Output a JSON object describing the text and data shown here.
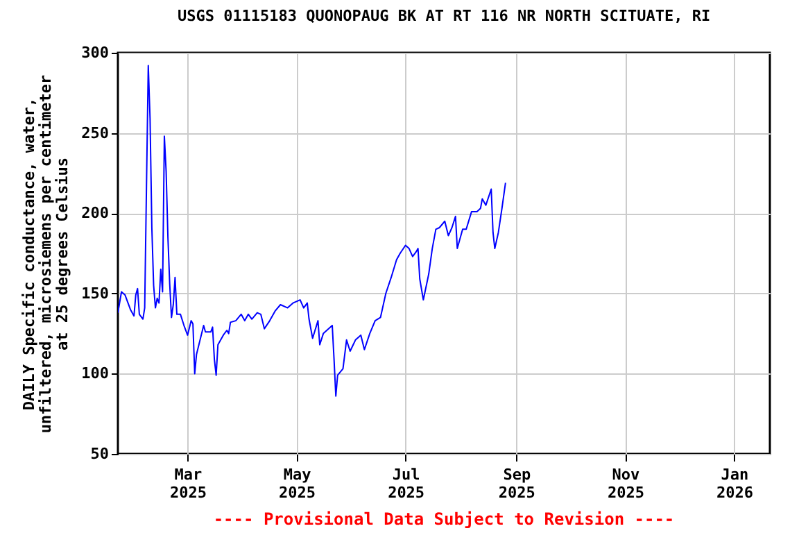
{
  "chart_data": {
    "type": "line",
    "title": "USGS 01115183 QUONOPAUG BK AT RT 116 NR NORTH SCITUATE, RI",
    "ylabel": "DAILY Specific conductance, water, unfiltered, microsiemens per centimeter at 25 degrees Celsius",
    "annotations": [
      "---- Provisional Data Subject to Revision ----"
    ],
    "xlim": [
      "2025-01-21",
      "2026-01-21"
    ],
    "ylim": [
      50,
      300
    ],
    "xticks": [
      {
        "value": "2025-03-01",
        "label": "Mar 2025"
      },
      {
        "value": "2025-05-01",
        "label": "May 2025"
      },
      {
        "value": "2025-07-01",
        "label": "Jul 2025"
      },
      {
        "value": "2025-09-01",
        "label": "Sep 2025"
      },
      {
        "value": "2025-11-01",
        "label": "Nov 2025"
      },
      {
        "value": "2026-01-01",
        "label": "Jan 2026"
      }
    ],
    "yticks": [
      50,
      100,
      150,
      200,
      250,
      300
    ],
    "grid": true,
    "x": [
      "2025-01-21",
      "2025-01-23",
      "2025-01-25",
      "2025-01-28",
      "2025-01-30",
      "2025-01-31",
      "2025-02-01",
      "2025-02-02",
      "2025-02-04",
      "2025-02-05",
      "2025-02-06",
      "2025-02-07",
      "2025-02-08",
      "2025-02-09",
      "2025-02-10",
      "2025-02-11",
      "2025-02-12",
      "2025-02-13",
      "2025-02-14",
      "2025-02-15",
      "2025-02-16",
      "2025-02-17",
      "2025-02-18",
      "2025-02-19",
      "2025-02-20",
      "2025-02-21",
      "2025-02-22",
      "2025-02-23",
      "2025-02-25",
      "2025-02-27",
      "2025-03-01",
      "2025-03-03",
      "2025-03-04",
      "2025-03-05",
      "2025-03-06",
      "2025-03-08",
      "2025-03-10",
      "2025-03-11",
      "2025-03-14",
      "2025-03-15",
      "2025-03-16",
      "2025-03-17",
      "2025-03-18",
      "2025-03-21",
      "2025-03-23",
      "2025-03-24",
      "2025-03-25",
      "2025-03-28",
      "2025-03-31",
      "2025-04-02",
      "2025-04-04",
      "2025-04-06",
      "2025-04-09",
      "2025-04-11",
      "2025-04-13",
      "2025-04-16",
      "2025-04-19",
      "2025-04-22",
      "2025-04-26",
      "2025-04-29",
      "2025-05-03",
      "2025-05-05",
      "2025-05-07",
      "2025-05-08",
      "2025-05-10",
      "2025-05-13",
      "2025-05-14",
      "2025-05-16",
      "2025-05-20",
      "2025-05-21",
      "2025-05-22",
      "2025-05-23",
      "2025-05-24",
      "2025-05-27",
      "2025-05-29",
      "2025-05-31",
      "2025-06-03",
      "2025-06-06",
      "2025-06-08",
      "2025-06-11",
      "2025-06-14",
      "2025-06-17",
      "2025-06-20",
      "2025-06-23",
      "2025-06-26",
      "2025-06-28",
      "2025-07-01",
      "2025-07-03",
      "2025-07-05",
      "2025-07-07",
      "2025-07-08",
      "2025-07-09",
      "2025-07-11",
      "2025-07-14",
      "2025-07-16",
      "2025-07-18",
      "2025-07-20",
      "2025-07-23",
      "2025-07-25",
      "2025-07-27",
      "2025-07-29",
      "2025-07-30",
      "2025-08-02",
      "2025-08-04",
      "2025-08-07",
      "2025-08-10",
      "2025-08-12",
      "2025-08-13",
      "2025-08-15",
      "2025-08-18",
      "2025-08-19",
      "2025-08-20",
      "2025-08-22",
      "2025-08-24",
      "2025-08-26"
    ],
    "series": [
      {
        "color": "#0000ff",
        "values": [
          138,
          151,
          149,
          140,
          136,
          149,
          153,
          137,
          134,
          141,
          217,
          292,
          259,
          191,
          155,
          141,
          147,
          144,
          165,
          151,
          248,
          226,
          185,
          156,
          135,
          143,
          160,
          137,
          137,
          130,
          124,
          133,
          131,
          100,
          112,
          121,
          130,
          126,
          126,
          129,
          109,
          99,
          118,
          124,
          127,
          125,
          132,
          133,
          137,
          133,
          137,
          134,
          138,
          137,
          128,
          133,
          139,
          143,
          141,
          144,
          146,
          141,
          144,
          134,
          122,
          133,
          118,
          125,
          129,
          130,
          109,
          86,
          99,
          103,
          121,
          114,
          121,
          124,
          115,
          125,
          133,
          135,
          150,
          160,
          171,
          175,
          180,
          178,
          173,
          176,
          178,
          159,
          146,
          162,
          178,
          190,
          191,
          195,
          186,
          191,
          198,
          178,
          190,
          190,
          201,
          201,
          203,
          209,
          205,
          215,
          188,
          178,
          188,
          203,
          219
        ]
      }
    ]
  }
}
